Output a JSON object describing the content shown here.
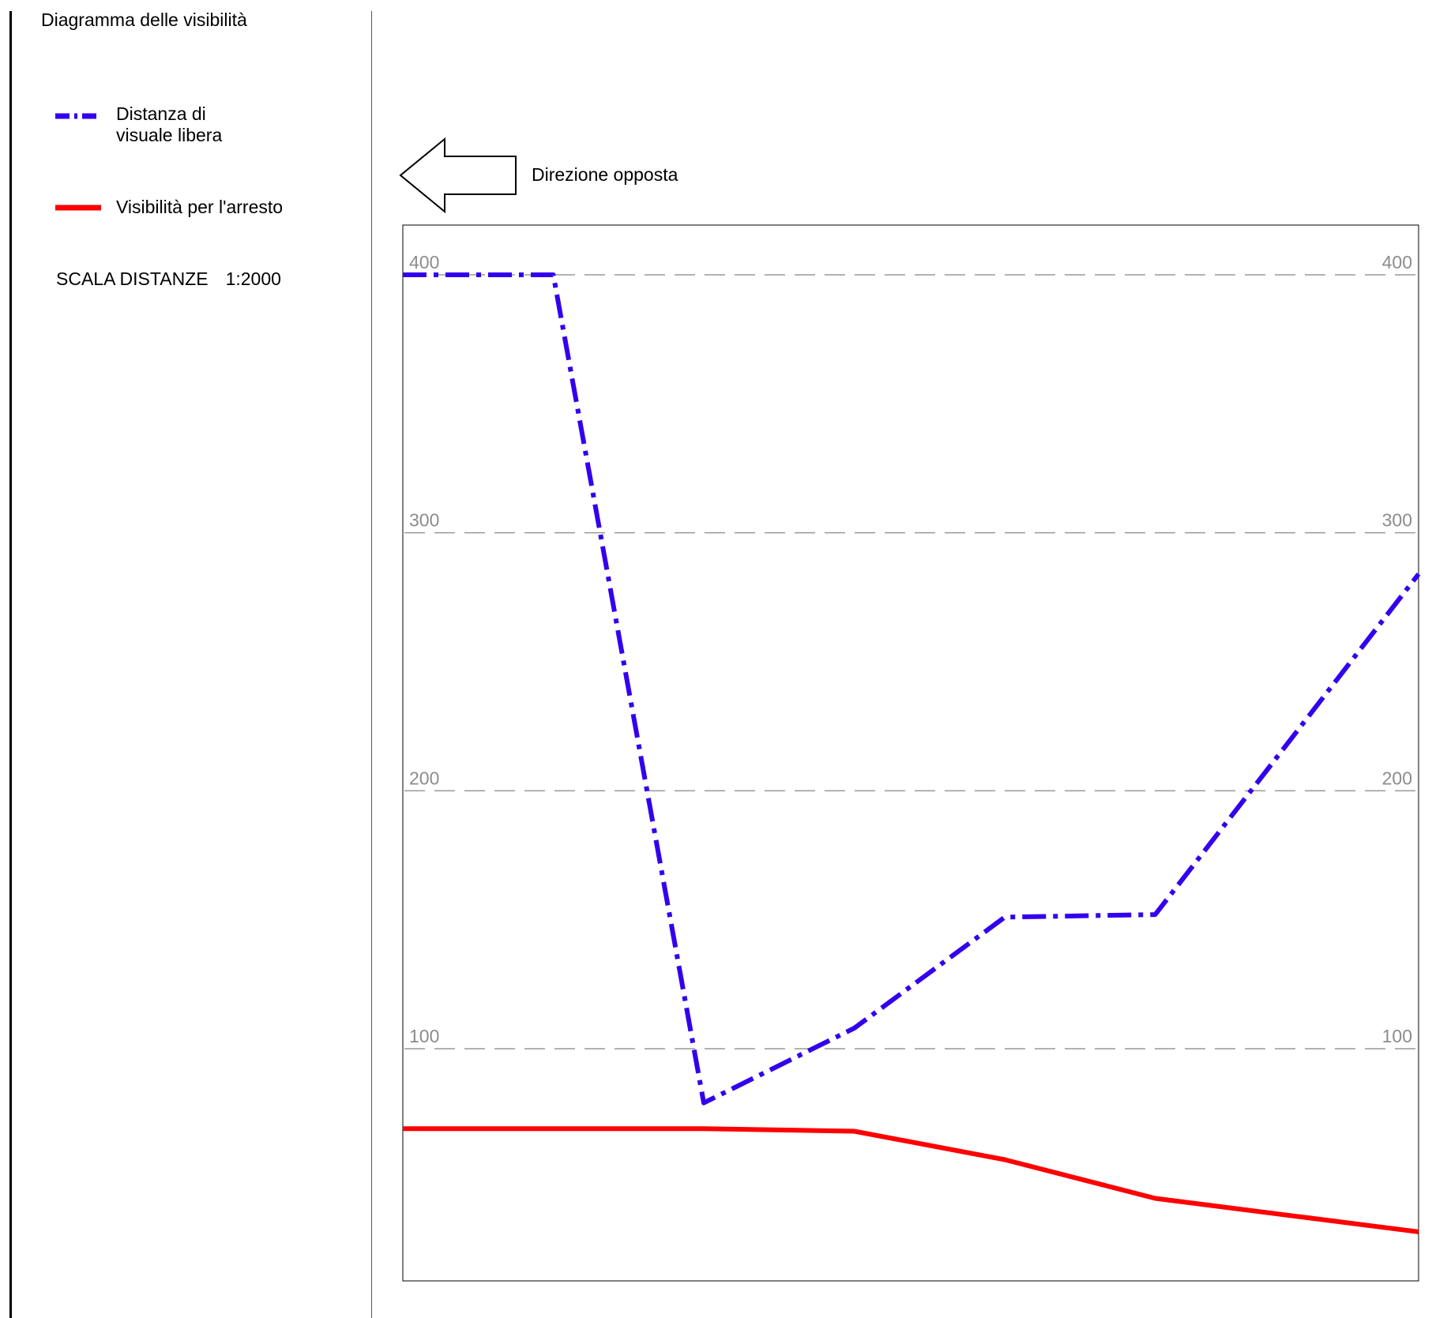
{
  "panel": {
    "title": "Diagramma delle visibilità",
    "scale_label": "SCALA DISTANZE",
    "scale_value": "1:2000"
  },
  "legend": [
    {
      "label": "Distanza di visuale libera",
      "color": "#3300ee",
      "style": "dash-dot"
    },
    {
      "label": "Visibilità per l'arresto",
      "color": "#ff0000",
      "style": "solid"
    }
  ],
  "direction": {
    "label": "Direzione opposta",
    "icon": "left-arrow-icon"
  },
  "chart_data": {
    "type": "line",
    "y_ticks": [
      100,
      200,
      300,
      400
    ],
    "y_tick_labels": [
      "100",
      "200",
      "300",
      "400"
    ],
    "ylim": [
      10,
      420
    ],
    "grid": true,
    "x": [
      0,
      1,
      2,
      3,
      4,
      5,
      6.75
    ],
    "series": [
      {
        "name": "Distanza di visuale libera",
        "color": "#3300ee",
        "values": [
          400,
          400,
          79,
          108,
          151,
          152,
          284
        ]
      },
      {
        "name": "Visibilità per l'arresto",
        "color": "#ff0000",
        "values": [
          69,
          69,
          69,
          68,
          57,
          42,
          29
        ]
      }
    ]
  }
}
